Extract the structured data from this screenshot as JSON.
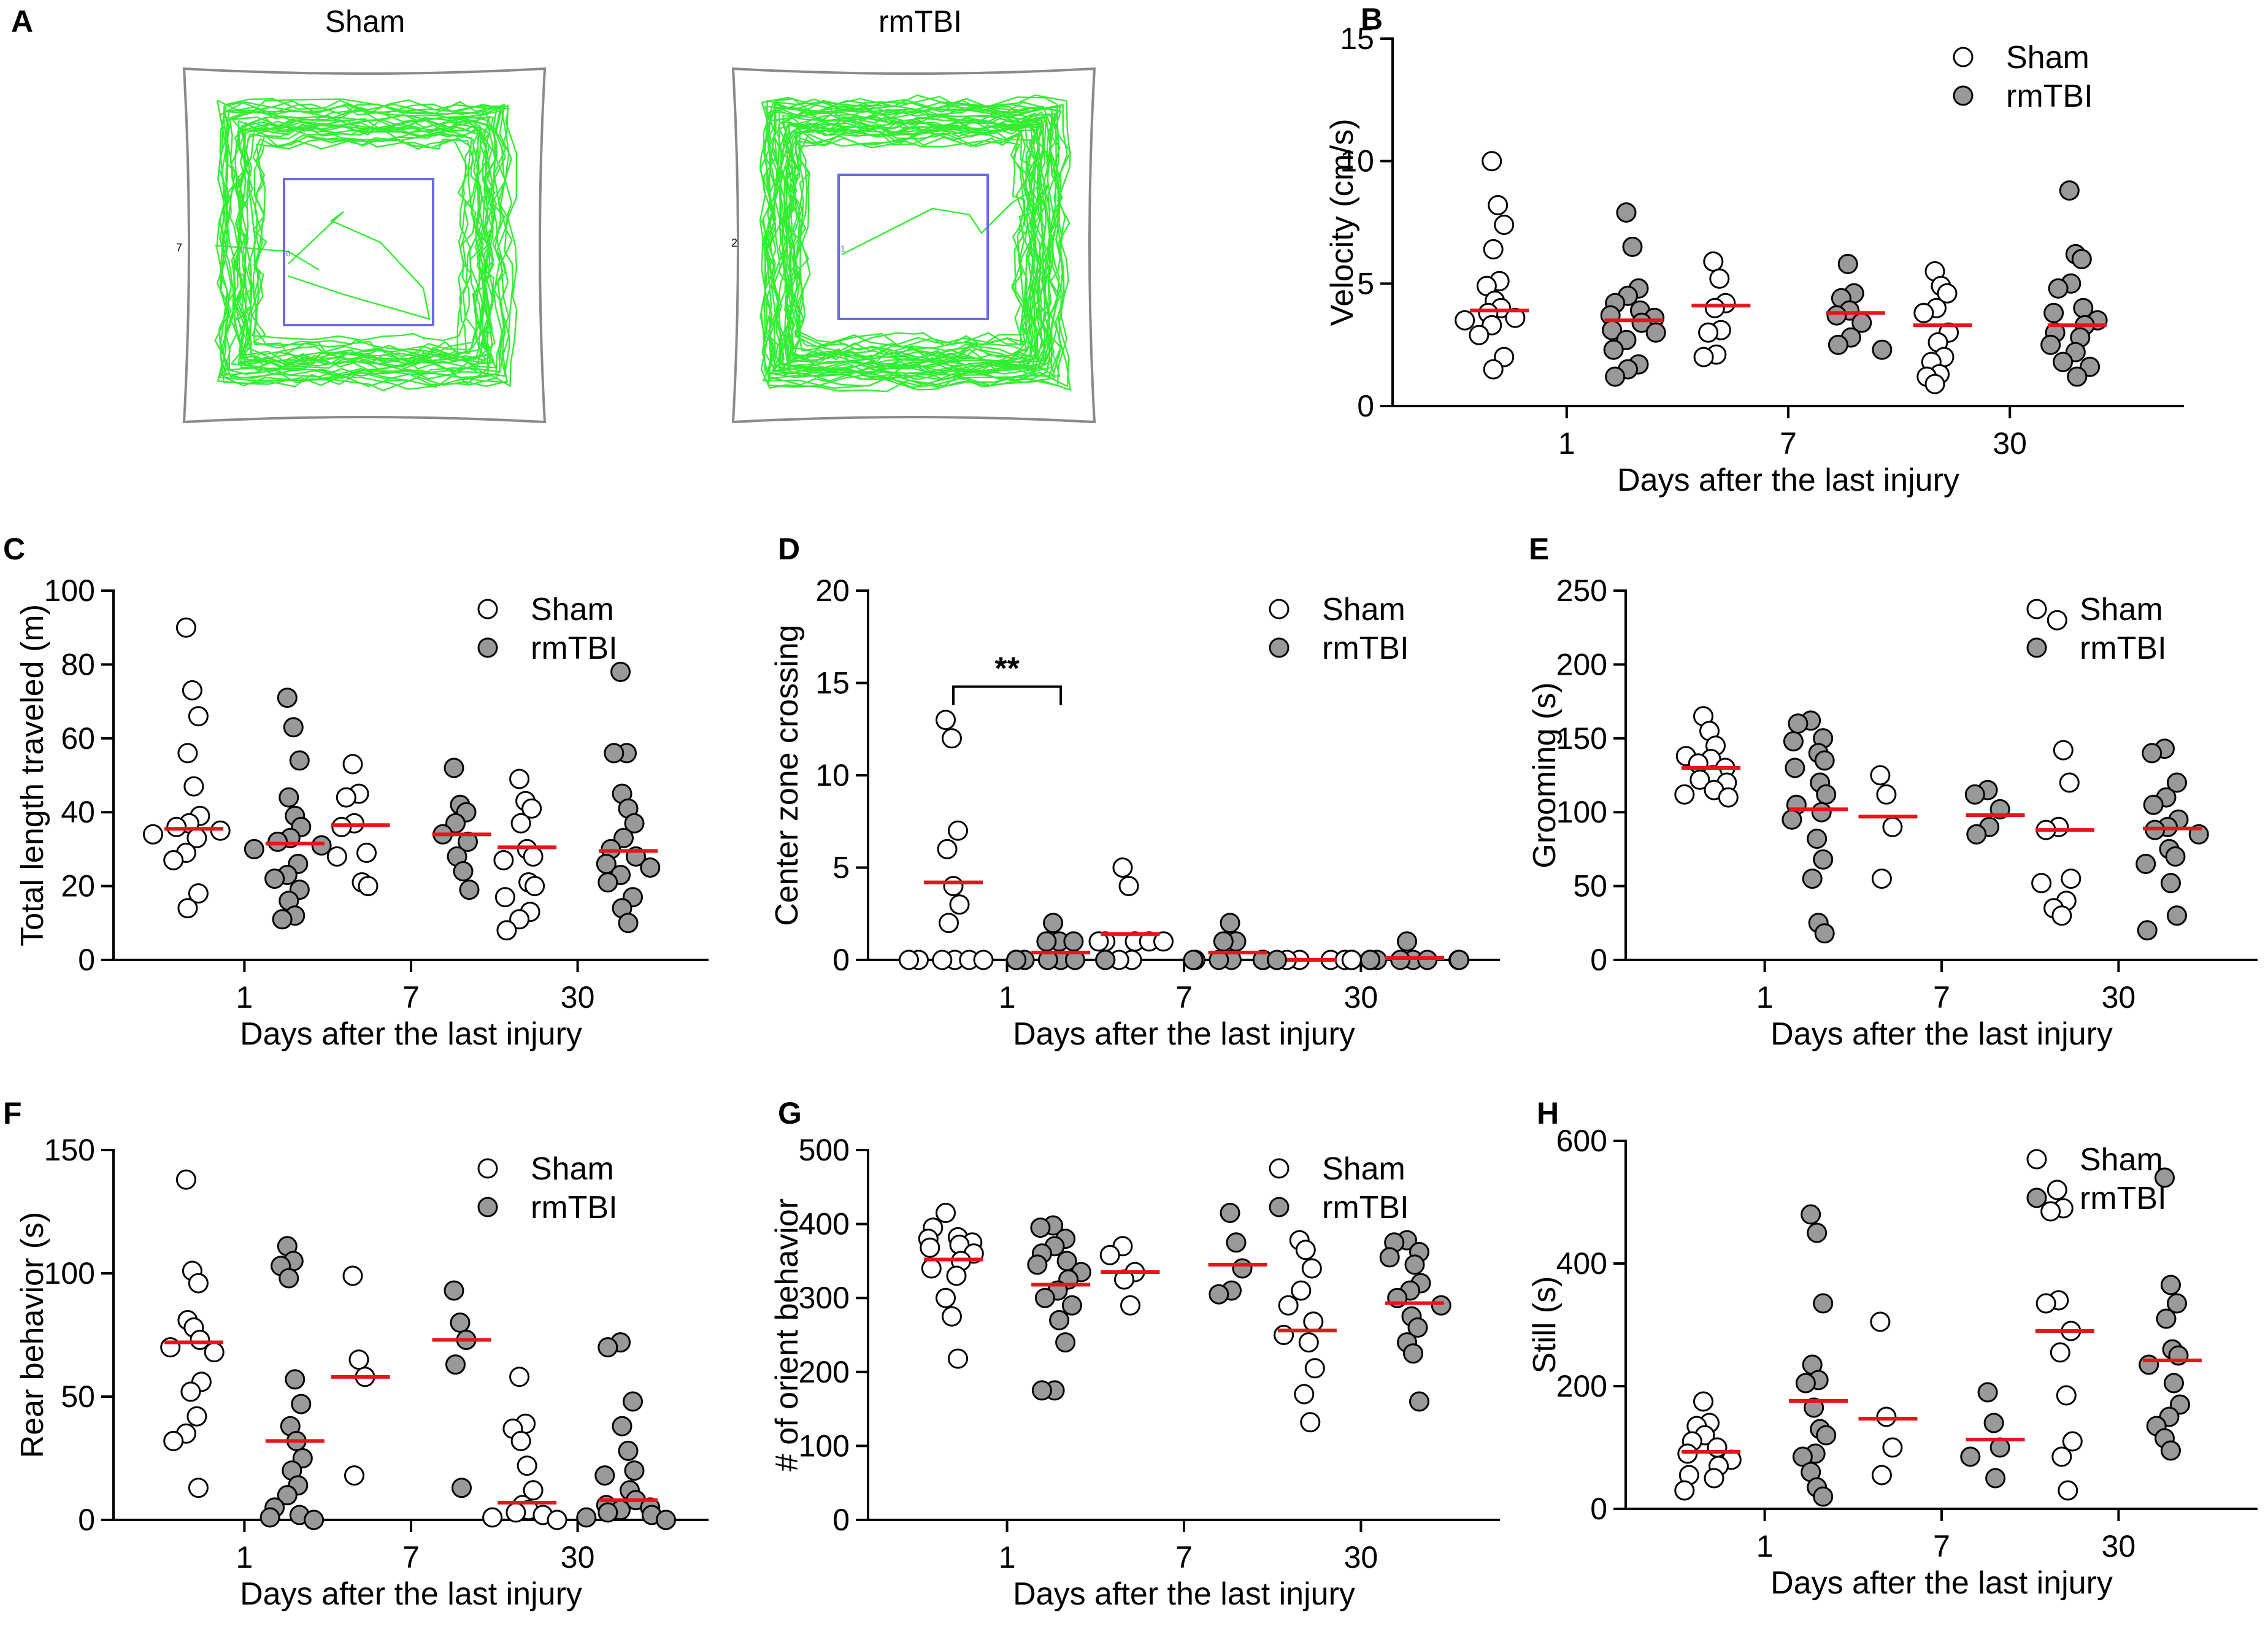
{
  "colors": {
    "sham_fill": "#ffffff",
    "rmtbi_fill": "#999999",
    "mean_line": "#e8141b",
    "track": "#33ee33",
    "zone": "#6a6ae8",
    "arena": "#8a8a8a"
  },
  "panel_a": {
    "letter": "A",
    "left_title": "Sham",
    "right_title": "rmTBI",
    "left_zone_label": "6",
    "right_zone_label": "1",
    "left_arena_label": "7",
    "right_arena_label": "2"
  },
  "chart_data": [
    {
      "panel": "B",
      "type": "scatter",
      "ylabel": "Velocity (cm/s)",
      "xlabel": "Days after the last injury",
      "ylim": [
        0,
        15
      ],
      "yticks": [
        0,
        5,
        10,
        15
      ],
      "categories": [
        "1",
        "7",
        "30"
      ],
      "legend": [
        "Sham",
        "rmTBI"
      ],
      "legend_position": "top-right",
      "series": [
        {
          "name": "Sham",
          "means": [
            3.9,
            4.1,
            3.3
          ],
          "points": [
            [
              10.0,
              8.2,
              7.4,
              6.4,
              5.1,
              4.9,
              4.3,
              4.0,
              3.8,
              3.6,
              3.5,
              3.3,
              2.9,
              2.0,
              1.5
            ],
            [
              5.9,
              5.2,
              4.2,
              4.0,
              3.1,
              3.0,
              2.1,
              2.0
            ],
            [
              5.5,
              4.9,
              4.6,
              4.0,
              3.8,
              3.0,
              2.6,
              2.0,
              1.8,
              1.3,
              1.2,
              0.9
            ]
          ]
        },
        {
          "name": "rmTBI",
          "means": [
            3.5,
            3.8,
            3.3
          ],
          "points": [
            [
              7.9,
              6.5,
              4.8,
              4.5,
              4.2,
              3.9,
              3.7,
              3.6,
              3.4,
              3.1,
              3.0,
              2.7,
              2.3,
              1.7,
              1.5,
              1.2
            ],
            [
              5.8,
              4.6,
              4.4,
              3.9,
              3.7,
              3.4,
              2.8,
              2.5,
              2.3
            ],
            [
              8.8,
              6.2,
              6.0,
              5.0,
              4.8,
              4.0,
              3.8,
              3.5,
              3.3,
              3.0,
              2.8,
              2.5,
              2.2,
              1.8,
              1.6,
              1.2
            ]
          ]
        }
      ]
    },
    {
      "panel": "C",
      "type": "scatter",
      "ylabel": "Total length traveled (m)",
      "xlabel": "Days after the last injury",
      "ylim": [
        0,
        100
      ],
      "yticks": [
        0,
        20,
        40,
        60,
        80,
        100
      ],
      "categories": [
        "1",
        "7",
        "30"
      ],
      "legend": [
        "Sham",
        "rmTBI"
      ],
      "legend_position": "top-right",
      "series": [
        {
          "name": "Sham",
          "means": [
            35.5,
            36.5,
            30.5
          ],
          "points": [
            [
              90,
              73,
              66,
              56,
              47,
              39,
              37,
              36,
              35,
              34,
              33,
              29,
              27,
              18,
              14
            ],
            [
              53,
              45,
              44,
              37,
              36,
              29,
              28,
              21,
              20
            ],
            [
              49,
              43,
              41,
              37,
              30,
              28,
              27,
              21,
              20,
              17,
              13,
              11,
              8
            ]
          ]
        },
        {
          "name": "rmTBI",
          "means": [
            31.5,
            34,
            29.5
          ],
          "points": [
            [
              71,
              63,
              54,
              44,
              39,
              36,
              33,
              32,
              31,
              30,
              26,
              23,
              22,
              19,
              16,
              12,
              11
            ],
            [
              52,
              42,
              40,
              37,
              34,
              32,
              28,
              24,
              19
            ],
            [
              78,
              56,
              56,
              45,
              41,
              37,
              33,
              30,
              28,
              26,
              25,
              23,
              21,
              17,
              14,
              10
            ]
          ]
        }
      ]
    },
    {
      "panel": "D",
      "type": "scatter",
      "ylabel": "Center zone crossing",
      "xlabel": "Days after the last injury",
      "ylim": [
        0,
        20
      ],
      "yticks": [
        0,
        5,
        10,
        15,
        20
      ],
      "categories": [
        "1",
        "7",
        "30"
      ],
      "legend": [
        "Sham",
        "rmTBI"
      ],
      "legend_position": "top-right",
      "significance": {
        "label": "**",
        "group": "1"
      },
      "series": [
        {
          "name": "Sham",
          "means": [
            4.2,
            1.4,
            0
          ],
          "points": [
            [
              13,
              12,
              7,
              6,
              4,
              3,
              2,
              0,
              0,
              0,
              0,
              0,
              0
            ],
            [
              5,
              4,
              1,
              1,
              1,
              1,
              1,
              0,
              0
            ],
            [
              0,
              0,
              0,
              0,
              0,
              0,
              0,
              0,
              0,
              0,
              0,
              0
            ]
          ]
        },
        {
          "name": "rmTBI",
          "means": [
            0.4,
            0.4,
            0.1
          ],
          "points": [
            [
              2,
              1,
              1,
              1,
              0,
              0,
              0,
              0,
              0,
              0,
              0,
              0,
              0,
              0
            ],
            [
              2,
              1,
              1,
              0,
              0,
              0,
              0,
              0,
              0
            ],
            [
              1,
              0,
              0,
              0,
              0,
              0,
              0,
              0,
              0,
              0,
              0,
              0
            ]
          ]
        }
      ]
    },
    {
      "panel": "E",
      "type": "scatter",
      "ylabel": "Grooming (s)",
      "xlabel": "Days after the last injury",
      "ylim": [
        0,
        250
      ],
      "yticks": [
        0,
        50,
        100,
        150,
        200,
        250
      ],
      "categories": [
        "1",
        "7",
        "30"
      ],
      "legend": [
        "Sham",
        "rmTBI"
      ],
      "legend_position": "top-right",
      "series": [
        {
          "name": "Sham",
          "means": [
            130,
            97,
            88
          ],
          "points": [
            [
              165,
              155,
              145,
              138,
              136,
              133,
              130,
              125,
              122,
              120,
              115,
              112,
              110
            ],
            [
              125,
              112,
              90,
              55
            ],
            [
              230,
              142,
              120,
              90,
              88,
              55,
              52,
              40,
              35,
              30
            ]
          ]
        },
        {
          "name": "rmTBI",
          "means": [
            102,
            98,
            89
          ],
          "points": [
            [
              162,
              160,
              150,
              148,
              140,
              135,
              130,
              120,
              112,
              105,
              100,
              95,
              82,
              68,
              55,
              25,
              18
            ],
            [
              115,
              112,
              102,
              90,
              85
            ],
            [
              143,
              140,
              120,
              110,
              105,
              95,
              90,
              88,
              85,
              75,
              70,
              65,
              52,
              30,
              20
            ]
          ]
        }
      ]
    },
    {
      "panel": "F",
      "type": "scatter",
      "ylabel": "Rear behavior (s)",
      "xlabel": "Days after the last injury",
      "ylim": [
        0,
        150
      ],
      "yticks": [
        0,
        50,
        100,
        150
      ],
      "categories": [
        "1",
        "7",
        "30"
      ],
      "legend": [
        "Sham",
        "rmTBI"
      ],
      "legend_position": "top-right",
      "series": [
        {
          "name": "Sham",
          "means": [
            72,
            58,
            7
          ],
          "points": [
            [
              138,
              101,
              96,
              81,
              78,
              73,
              70,
              68,
              56,
              52,
              42,
              35,
              32,
              13
            ],
            [
              99,
              65,
              58,
              18
            ],
            [
              58,
              39,
              37,
              32,
              22,
              12,
              6,
              4,
              3,
              2,
              1,
              0
            ]
          ]
        },
        {
          "name": "rmTBI",
          "means": [
            32,
            73,
            8
          ],
          "points": [
            [
              111,
              105,
              103,
              98,
              57,
              47,
              38,
              32,
              25,
              20,
              14,
              10,
              5,
              2,
              1,
              0
            ],
            [
              93,
              80,
              73,
              63,
              13
            ],
            [
              72,
              70,
              48,
              38,
              28,
              20,
              18,
              12,
              8,
              6,
              5,
              4,
              3,
              2,
              1,
              0
            ]
          ]
        }
      ]
    },
    {
      "panel": "G",
      "type": "scatter",
      "ylabel": "# of orient behavior",
      "xlabel": "Days after the last injury",
      "ylim": [
        0,
        500
      ],
      "yticks": [
        0,
        100,
        200,
        300,
        400,
        500
      ],
      "categories": [
        "1",
        "7",
        "30"
      ],
      "legend": [
        "Sham",
        "rmTBI"
      ],
      "legend_position": "top-right",
      "series": [
        {
          "name": "Sham",
          "means": [
            352,
            335,
            256
          ],
          "points": [
            [
              415,
              395,
              382,
              380,
              375,
              372,
              368,
              360,
              350,
              340,
              330,
              300,
              275,
              218
            ],
            [
              370,
              358,
              335,
              325,
              290
            ],
            [
              378,
              365,
              340,
              310,
              290,
              268,
              250,
              240,
              205,
              170,
              132
            ]
          ]
        },
        {
          "name": "rmTBI",
          "means": [
            318,
            345,
            293
          ],
          "points": [
            [
              398,
              395,
              380,
              370,
              360,
              350,
              345,
              335,
              325,
              310,
              300,
              290,
              270,
              240,
              175,
              175
            ],
            [
              415,
              375,
              340,
              310,
              305
            ],
            [
              378,
              375,
              362,
              355,
              345,
              320,
              310,
              300,
              290,
              275,
              260,
              240,
              225,
              160
            ]
          ]
        }
      ]
    },
    {
      "panel": "H",
      "type": "scatter",
      "ylabel": "Still (s)",
      "xlabel": "Days after the last injury",
      "ylim": [
        0,
        600
      ],
      "yticks": [
        0,
        200,
        400,
        600
      ],
      "categories": [
        "1",
        "7",
        "30"
      ],
      "legend": [
        "Sham",
        "rmTBI"
      ],
      "legend_position": "top-right",
      "series": [
        {
          "name": "Sham",
          "means": [
            93,
            147,
            290
          ],
          "points": [
            [
              175,
              140,
              135,
              120,
              110,
              100,
              90,
              80,
              70,
              55,
              50,
              30
            ],
            [
              305,
              150,
              100,
              55
            ],
            [
              520,
              490,
              485,
              340,
              335,
              290,
              255,
              185,
              110,
              85,
              30
            ]
          ]
        },
        {
          "name": "rmTBI",
          "means": [
            176,
            113,
            242
          ],
          "points": [
            [
              480,
              450,
              335,
              235,
              210,
              205,
              165,
              130,
              120,
              90,
              85,
              60,
              35,
              20
            ],
            [
              190,
              140,
              100,
              85,
              50
            ],
            [
              540,
              365,
              335,
              310,
              260,
              250,
              235,
              205,
              170,
              150,
              135,
              115,
              95
            ]
          ]
        }
      ]
    }
  ]
}
